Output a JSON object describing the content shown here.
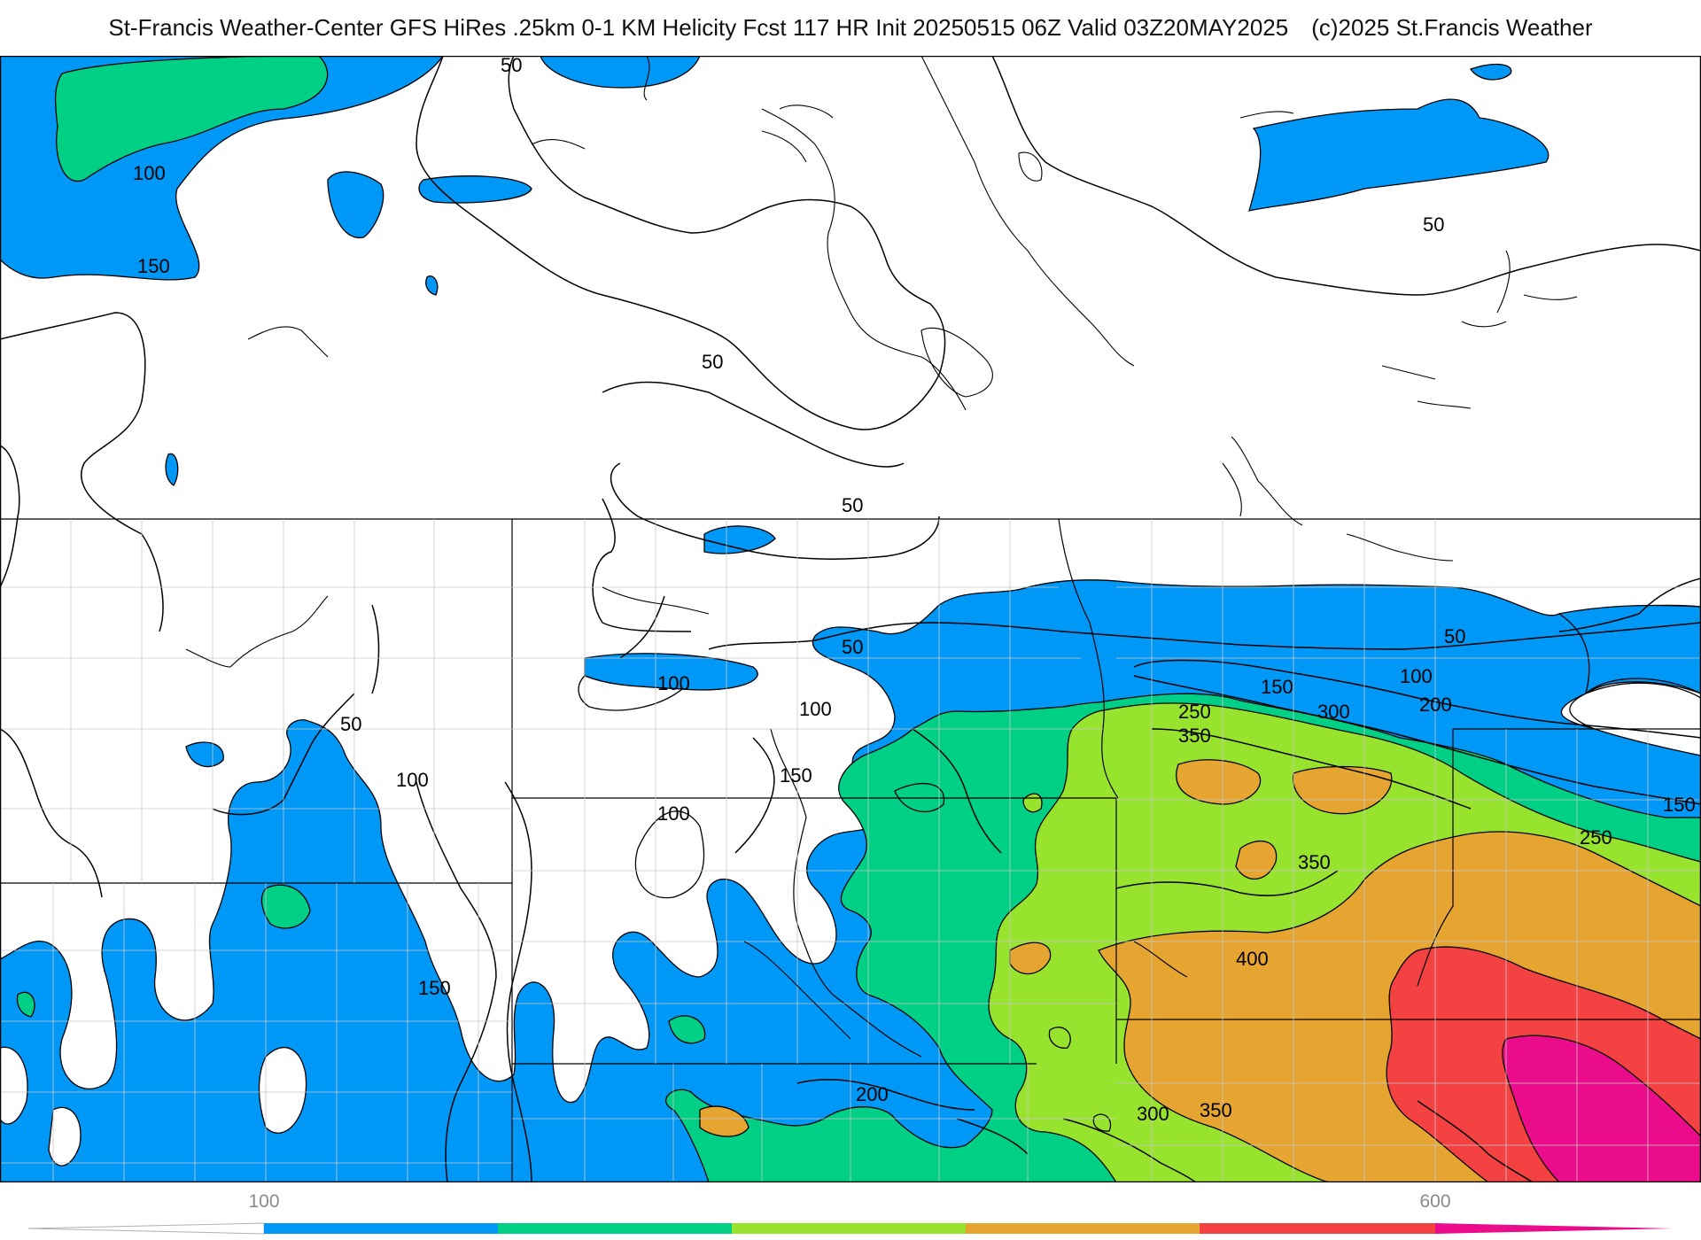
{
  "header": {
    "title": "St-Francis Weather-Center GFS HiRes .25km 0-1 KM Helicity Fcst 117 HR Init 20250515 06Z  Valid 03Z20MAY2025",
    "credit": "(c)2025 St.Francis Weather"
  },
  "map": {
    "contour_labels": [
      "50",
      "100",
      "150",
      "200",
      "250",
      "300",
      "350",
      "400"
    ],
    "fill_colors": {
      "100-150": "#0098f6",
      "150-200": "#00cf86",
      "200-300": "#98e32e",
      "300-400": "#e6a530",
      "400-500": "#f44142",
      "500-600": "#ea0c8a"
    }
  },
  "colorbar": {
    "tick_labels": [
      "100",
      "600"
    ],
    "segments": [
      "#0098f6",
      "#00cf86",
      "#98e32e",
      "#e6a530",
      "#f44142",
      "#ea0c8a"
    ]
  }
}
